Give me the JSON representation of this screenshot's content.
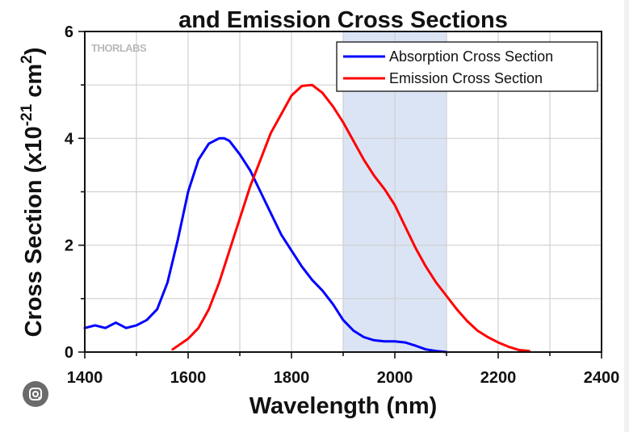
{
  "logo_text": "THORLABS",
  "lens_icon": "google-lens-icon",
  "colors": {
    "absorption": "#0000ff",
    "emission": "#ff0000",
    "shade": "#dbe4f4",
    "grid": "#d0d0d0",
    "background": "#ffffff"
  },
  "chart_data": {
    "type": "line",
    "title": "and Emission Cross Sections",
    "xlabel": "Wavelength (nm)",
    "ylabel": "Cross Section (x10^-21 cm^2)",
    "xlim": [
      1400,
      2400
    ],
    "ylim": [
      0,
      6
    ],
    "x_ticks": [
      1400,
      1600,
      1800,
      2000,
      2200,
      2400
    ],
    "y_ticks": [
      0,
      2,
      4,
      6
    ],
    "grid": true,
    "legend_position": "top-right",
    "highlight_region": [
      1900,
      2100
    ],
    "series": [
      {
        "name": "Absorption Cross Section",
        "color": "#0000ff",
        "x": [
          1400,
          1420,
          1440,
          1460,
          1480,
          1500,
          1520,
          1540,
          1560,
          1580,
          1600,
          1620,
          1640,
          1660,
          1670,
          1680,
          1700,
          1720,
          1740,
          1760,
          1780,
          1800,
          1820,
          1840,
          1860,
          1880,
          1900,
          1920,
          1940,
          1960,
          1980,
          2000,
          2020,
          2040,
          2060,
          2080,
          2100
        ],
        "y": [
          0.45,
          0.5,
          0.45,
          0.55,
          0.45,
          0.5,
          0.6,
          0.8,
          1.3,
          2.1,
          3.0,
          3.6,
          3.9,
          4.0,
          4.0,
          3.95,
          3.7,
          3.4,
          3.0,
          2.6,
          2.2,
          1.9,
          1.6,
          1.35,
          1.15,
          0.9,
          0.6,
          0.4,
          0.28,
          0.22,
          0.2,
          0.2,
          0.18,
          0.12,
          0.05,
          0.02,
          0.0
        ]
      },
      {
        "name": "Emission Cross Section",
        "color": "#ff0000",
        "x": [
          1570,
          1600,
          1620,
          1640,
          1660,
          1680,
          1700,
          1720,
          1740,
          1760,
          1780,
          1800,
          1820,
          1840,
          1860,
          1880,
          1900,
          1920,
          1940,
          1960,
          1980,
          2000,
          2020,
          2040,
          2060,
          2080,
          2100,
          2120,
          2140,
          2160,
          2180,
          2200,
          2220,
          2240,
          2260
        ],
        "y": [
          0.05,
          0.25,
          0.45,
          0.8,
          1.3,
          1.9,
          2.5,
          3.1,
          3.6,
          4.1,
          4.45,
          4.8,
          4.98,
          5.0,
          4.85,
          4.6,
          4.3,
          3.95,
          3.6,
          3.3,
          3.05,
          2.75,
          2.35,
          1.95,
          1.6,
          1.3,
          1.05,
          0.8,
          0.58,
          0.4,
          0.28,
          0.18,
          0.1,
          0.04,
          0.02
        ]
      }
    ]
  }
}
